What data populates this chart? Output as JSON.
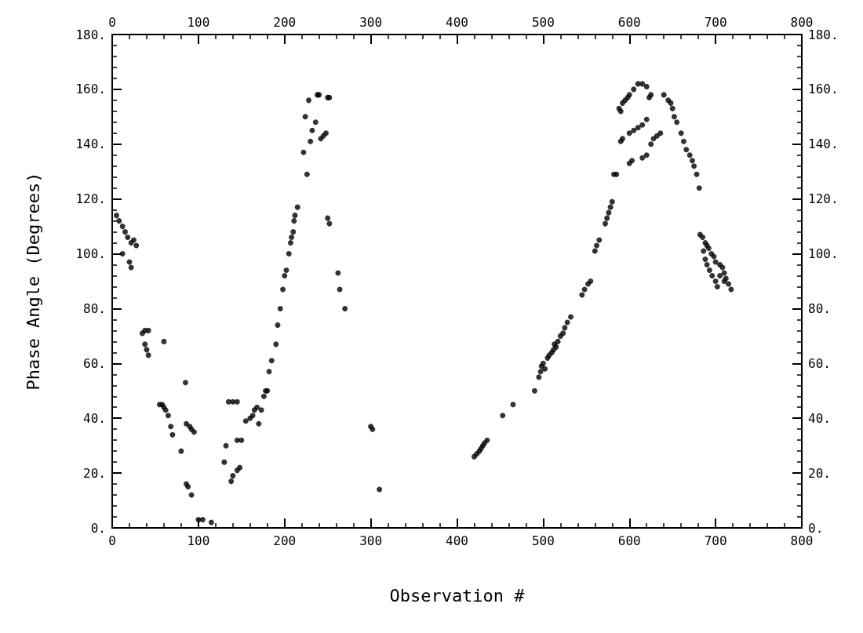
{
  "chart_data": {
    "type": "scatter",
    "xlabel": "Observation #",
    "ylabel": "Phase Angle (Degrees)",
    "marker": "circle",
    "grid": false,
    "xlim": [
      0,
      800
    ],
    "xticks": [
      0,
      100,
      200,
      300,
      400,
      500,
      600,
      700,
      800
    ],
    "x2lim": [
      0,
      800
    ],
    "x2ticks": [
      0,
      100,
      200,
      300,
      400,
      500,
      600,
      700,
      800
    ],
    "ylim": [
      0,
      180
    ],
    "yticks": [
      {
        "value": 0,
        "label": "0."
      },
      {
        "value": 20,
        "label": "20."
      },
      {
        "value": 40,
        "label": "40."
      },
      {
        "value": 60,
        "label": "60."
      },
      {
        "value": 80,
        "label": "80."
      },
      {
        "value": 100,
        "label": "100."
      },
      {
        "value": 120,
        "label": "120."
      },
      {
        "value": 140,
        "label": "140."
      },
      {
        "value": 160,
        "label": "160."
      },
      {
        "value": 180,
        "label": "180."
      }
    ],
    "y2lim": [
      0,
      180
    ],
    "y2ticks": [
      {
        "value": 0,
        "label": "0."
      },
      {
        "value": 20,
        "label": "20."
      },
      {
        "value": 40,
        "label": "40."
      },
      {
        "value": 60,
        "label": "60."
      },
      {
        "value": 80,
        "label": "80."
      },
      {
        "value": 100,
        "label": "100."
      },
      {
        "value": 120,
        "label": "120."
      },
      {
        "value": 140,
        "label": "140."
      },
      {
        "value": 160,
        "label": "160."
      },
      {
        "value": 180,
        "label": "180."
      }
    ],
    "series": [
      {
        "color": "#000000",
        "x": [
          5,
          8,
          12,
          15,
          18,
          22,
          25,
          28,
          12,
          20,
          22,
          35,
          38,
          42,
          38,
          40,
          42,
          60,
          55,
          58,
          60,
          62,
          65,
          68,
          70,
          80,
          85,
          86,
          90,
          92,
          95,
          86,
          88,
          92,
          100,
          105,
          115,
          130,
          132,
          135,
          140,
          145,
          138,
          140,
          145,
          148,
          145,
          150,
          155,
          160,
          163,
          165,
          168,
          170,
          173,
          176,
          178,
          180,
          182,
          185,
          190,
          192,
          195,
          198,
          200,
          202,
          205,
          207,
          208,
          210,
          211,
          212,
          215,
          222,
          224,
          226,
          228,
          230,
          232,
          236,
          238,
          240,
          242,
          245,
          248,
          250,
          252,
          250,
          252,
          262,
          264,
          270,
          300,
          302,
          310,
          420,
          423,
          426,
          428,
          430,
          432,
          435,
          453,
          465,
          490,
          495,
          497,
          498,
          500,
          502,
          505,
          507,
          510,
          512,
          513,
          515,
          517,
          520,
          523,
          525,
          528,
          532,
          545,
          548,
          552,
          555,
          560,
          562,
          565,
          572,
          574,
          576,
          578,
          580,
          582,
          585,
          588,
          590,
          592,
          595,
          598,
          600,
          605,
          610,
          615,
          620,
          625,
          623,
          640,
          645,
          648,
          650,
          652,
          655,
          590,
          592,
          600,
          605,
          610,
          615,
          620,
          625,
          628,
          632,
          636,
          600,
          603,
          615,
          620,
          660,
          663,
          666,
          670,
          673,
          675,
          678,
          681,
          682,
          685,
          688,
          690,
          692,
          695,
          698,
          700,
          686,
          688,
          690,
          693,
          696,
          700,
          702,
          705,
          708,
          710,
          712,
          715,
          718,
          705,
          710
        ],
        "values": [
          114,
          112,
          110,
          108,
          106,
          104,
          105,
          103,
          100,
          97,
          95,
          71,
          72,
          72,
          67,
          65,
          63,
          68,
          45,
          45,
          44,
          43,
          41,
          37,
          34,
          28,
          53,
          38,
          37,
          36,
          35,
          16,
          15,
          12,
          3,
          3,
          2,
          24,
          30,
          46,
          46,
          46,
          17,
          19,
          21,
          22,
          32,
          32,
          39,
          40,
          41,
          43,
          44,
          38,
          43,
          48,
          50,
          50,
          57,
          61,
          67,
          74,
          80,
          87,
          92,
          94,
          100,
          104,
          106,
          108,
          112,
          114,
          117,
          137,
          150,
          129,
          156,
          141,
          145,
          148,
          158,
          158,
          142,
          143,
          144,
          157,
          157,
          113,
          111,
          93,
          87,
          80,
          37,
          36,
          14,
          26,
          27,
          28,
          29,
          30,
          31,
          32,
          41,
          45,
          50,
          55,
          57,
          59,
          60,
          58,
          62,
          63,
          64,
          65,
          67,
          66,
          68,
          70,
          71,
          73,
          75,
          77,
          85,
          87,
          89,
          90,
          101,
          103,
          105,
          111,
          113,
          115,
          117,
          119,
          129,
          129,
          153,
          152,
          155,
          156,
          157,
          158,
          160,
          162,
          162,
          161,
          158,
          157,
          158,
          156,
          155,
          153,
          150,
          148,
          141,
          142,
          144,
          145,
          146,
          147,
          149,
          140,
          142,
          143,
          144,
          133,
          134,
          135,
          136,
          144,
          141,
          138,
          136,
          134,
          132,
          129,
          124,
          107,
          106,
          104,
          103,
          102,
          100,
          99,
          97,
          101,
          98,
          96,
          94,
          92,
          90,
          88,
          96,
          95,
          93,
          91,
          89,
          87,
          92,
          90
        ]
      }
    ]
  }
}
